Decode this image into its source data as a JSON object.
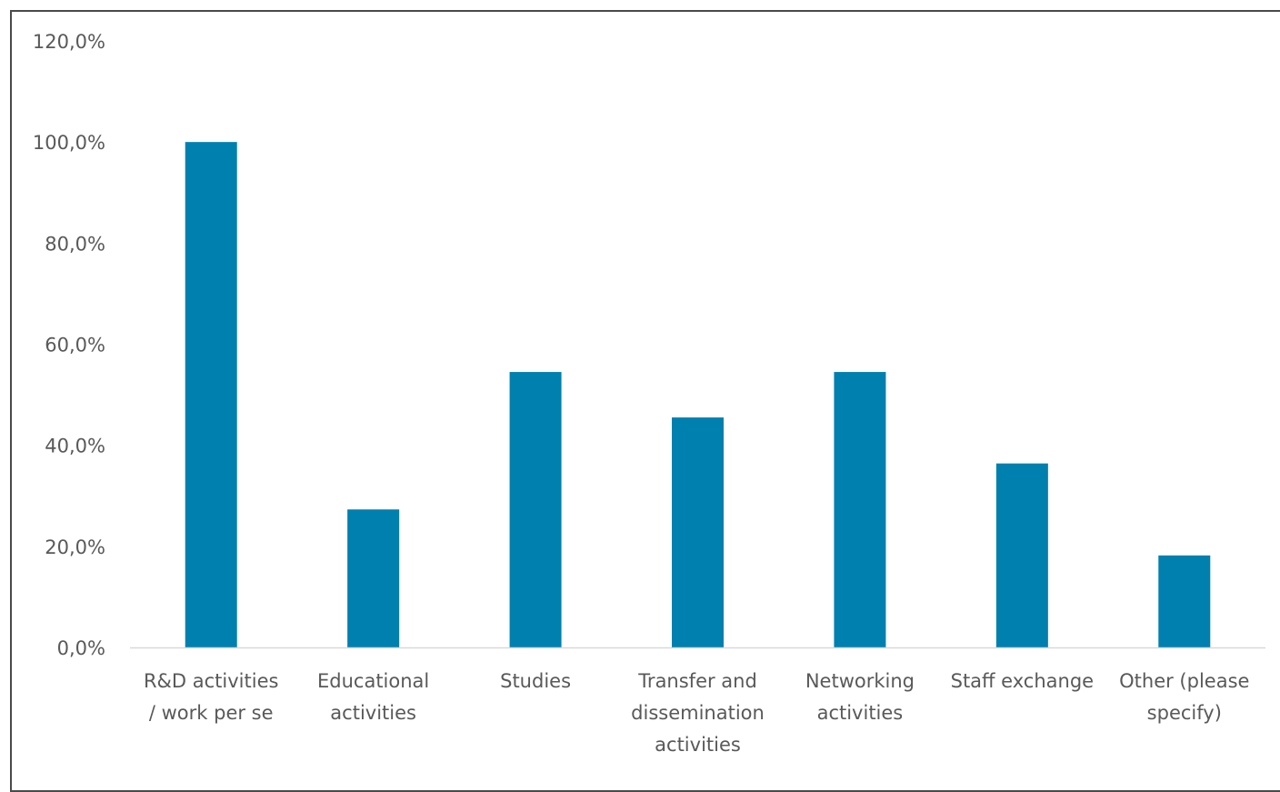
{
  "chart_data": {
    "type": "bar",
    "categories": [
      [
        "R&D activities",
        "/ work per se"
      ],
      [
        "Educational",
        "activities"
      ],
      [
        "Studies"
      ],
      [
        "Transfer and",
        "dissemination",
        "activities"
      ],
      [
        "Networking",
        "activities"
      ],
      [
        "Staff exchange"
      ],
      [
        "Other (please",
        "specify)"
      ]
    ],
    "values": [
      100.0,
      27.3,
      54.5,
      45.5,
      54.5,
      36.4,
      18.2
    ],
    "ylim": [
      0,
      120
    ],
    "yticks": [
      0,
      20,
      40,
      60,
      80,
      100,
      120
    ],
    "ytick_labels": [
      "0,0%",
      "20,0%",
      "40,0%",
      "60,0%",
      "80,0%",
      "100,0%",
      "120,0%"
    ],
    "title": "",
    "xlabel": "",
    "ylabel": "",
    "grid": false,
    "bar_color": "#0080AE"
  }
}
